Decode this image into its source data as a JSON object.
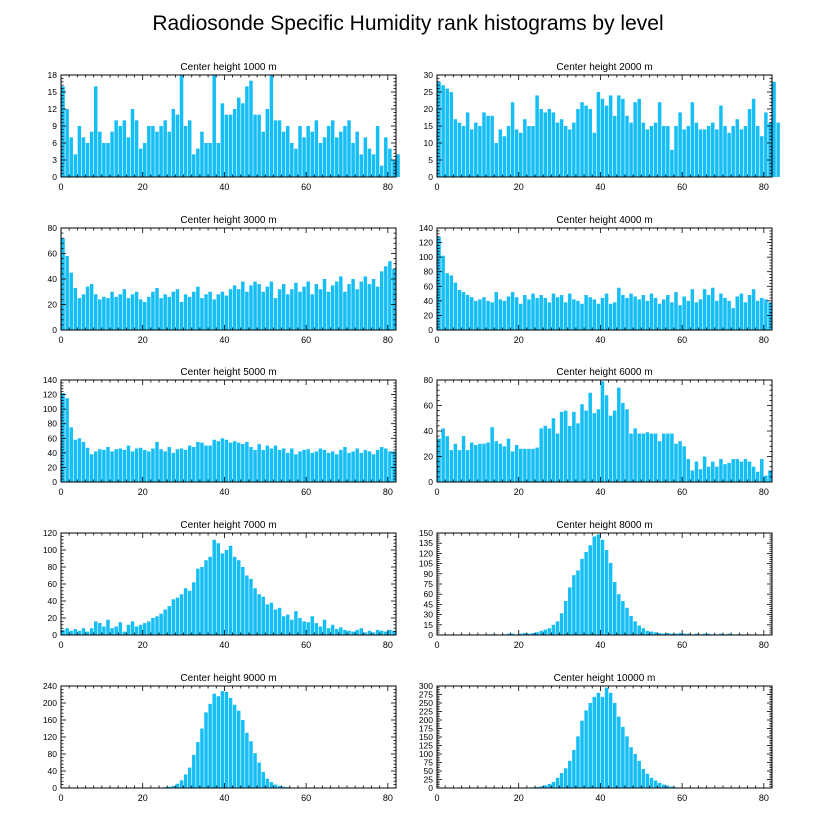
{
  "title": "Radiosonde Specific Humidity rank histograms by level",
  "colors": {
    "bar": "#16BEF6",
    "bar_edge": "#ffffff",
    "axis": "#000000"
  },
  "chart_data": [
    {
      "type": "bar",
      "title": "Center height 1000 m",
      "xlim": [
        0,
        82
      ],
      "ylim": [
        0,
        18
      ],
      "xticks": [
        0,
        20,
        40,
        60,
        80
      ],
      "yticks": [
        0,
        3,
        6,
        9,
        12,
        15,
        18
      ],
      "values": [
        16,
        12,
        7,
        4,
        9,
        7,
        6,
        8,
        16,
        8,
        6,
        6,
        8,
        10,
        9,
        10,
        7,
        12,
        10,
        5,
        6,
        9,
        9,
        8,
        9,
        10,
        8,
        12,
        11,
        18,
        9,
        10,
        4,
        5,
        8,
        6,
        6,
        18,
        6,
        13,
        11,
        11,
        12,
        14,
        13,
        16,
        17,
        11,
        11,
        8,
        12,
        18,
        10,
        10,
        8,
        9,
        6,
        5,
        9,
        7,
        9,
        8,
        10,
        6,
        7,
        9,
        10,
        7,
        8,
        9,
        10,
        6,
        8,
        4,
        7,
        5,
        4,
        9,
        2,
        7,
        5,
        3,
        4
      ]
    },
    {
      "type": "bar",
      "title": "Center height 2000 m",
      "xlim": [
        0,
        82
      ],
      "ylim": [
        0,
        30
      ],
      "xticks": [
        0,
        20,
        40,
        60,
        80
      ],
      "yticks": [
        0,
        5,
        10,
        15,
        20,
        25,
        30
      ],
      "values": [
        28,
        27,
        26,
        25,
        17,
        16,
        15,
        19,
        14,
        16,
        15,
        19,
        18,
        18,
        10,
        14,
        12,
        15,
        22,
        14,
        13,
        17,
        15,
        15,
        24,
        20,
        19,
        20,
        19,
        16,
        17,
        15,
        14,
        16,
        20,
        22,
        21,
        20,
        13,
        25,
        23,
        21,
        24,
        18,
        24,
        23,
        18,
        16,
        22,
        23,
        16,
        14,
        15,
        16,
        22,
        15,
        15,
        8,
        15,
        19,
        14,
        15,
        22,
        16,
        14,
        14,
        15,
        16,
        14,
        21,
        15,
        13,
        15,
        17,
        14,
        15,
        20,
        23,
        15,
        12,
        19,
        16,
        28,
        16
      ]
    },
    {
      "type": "bar",
      "title": "Center height 3000 m",
      "xlim": [
        0,
        82
      ],
      "ylim": [
        0,
        80
      ],
      "xticks": [
        0,
        20,
        40,
        60,
        80
      ],
      "yticks": [
        0,
        20,
        40,
        60,
        80
      ],
      "values": [
        72,
        58,
        45,
        33,
        25,
        28,
        34,
        36,
        28,
        24,
        26,
        25,
        30,
        26,
        28,
        32,
        25,
        28,
        30,
        24,
        22,
        26,
        30,
        33,
        25,
        28,
        26,
        30,
        32,
        22,
        28,
        26,
        30,
        34,
        25,
        28,
        30,
        24,
        28,
        30,
        27,
        32,
        35,
        32,
        38,
        30,
        35,
        38,
        36,
        30,
        34,
        38,
        25,
        32,
        36,
        28,
        32,
        37,
        30,
        34,
        38,
        28,
        36,
        32,
        40,
        30,
        35,
        38,
        42,
        30,
        36,
        40,
        32,
        38,
        42,
        36,
        40,
        34,
        46,
        50,
        54,
        48
      ]
    },
    {
      "type": "bar",
      "title": "Center height 4000 m",
      "xlim": [
        0,
        82
      ],
      "ylim": [
        0,
        140
      ],
      "xticks": [
        0,
        20,
        40,
        60,
        80
      ],
      "yticks": [
        0,
        20,
        40,
        60,
        80,
        100,
        120,
        140
      ],
      "values": [
        128,
        102,
        78,
        75,
        65,
        55,
        52,
        48,
        45,
        40,
        42,
        45,
        40,
        38,
        52,
        42,
        40,
        46,
        52,
        45,
        36,
        48,
        42,
        50,
        44,
        48,
        44,
        38,
        50,
        45,
        48,
        38,
        50,
        42,
        40,
        36,
        48,
        45,
        42,
        36,
        44,
        50,
        36,
        38,
        58,
        48,
        44,
        50,
        46,
        42,
        48,
        40,
        50,
        44,
        36,
        42,
        48,
        38,
        52,
        34,
        46,
        40,
        56,
        38,
        42,
        56,
        48,
        58,
        40,
        50,
        44,
        40,
        30,
        46,
        50,
        38,
        48,
        56,
        40,
        44,
        42,
        38
      ]
    },
    {
      "type": "bar",
      "title": "Center height 5000 m",
      "xlim": [
        0,
        82
      ],
      "ylim": [
        0,
        140
      ],
      "xticks": [
        0,
        20,
        40,
        60,
        80
      ],
      "yticks": [
        0,
        20,
        40,
        60,
        80,
        100,
        120,
        140
      ],
      "values": [
        122,
        115,
        75,
        58,
        60,
        55,
        47,
        38,
        42,
        45,
        44,
        48,
        42,
        45,
        46,
        44,
        50,
        42,
        46,
        47,
        44,
        42,
        46,
        55,
        45,
        42,
        48,
        40,
        45,
        46,
        44,
        50,
        48,
        55,
        54,
        50,
        50,
        58,
        56,
        60,
        58,
        54,
        56,
        54,
        52,
        55,
        48,
        44,
        52,
        44,
        50,
        46,
        50,
        44,
        46,
        40,
        46,
        38,
        42,
        44,
        45,
        40,
        42,
        46,
        44,
        40,
        42,
        38,
        44,
        48,
        40,
        42,
        46,
        40,
        44,
        42,
        38,
        44,
        48,
        46,
        42,
        42
      ]
    },
    {
      "type": "bar",
      "title": "Center height 6000 m",
      "xlim": [
        0,
        82
      ],
      "ylim": [
        0,
        80
      ],
      "xticks": [
        0,
        20,
        40,
        60,
        80
      ],
      "yticks": [
        0,
        20,
        40,
        60,
        80
      ],
      "values": [
        34,
        42,
        36,
        25,
        30,
        25,
        36,
        25,
        31,
        29,
        30,
        30,
        31,
        43,
        32,
        30,
        28,
        34,
        24,
        29,
        26,
        26,
        26,
        26,
        27,
        42,
        44,
        42,
        50,
        38,
        55,
        56,
        44,
        55,
        46,
        61,
        56,
        70,
        54,
        57,
        79,
        68,
        52,
        56,
        74,
        62,
        57,
        38,
        42,
        38,
        38,
        39,
        38,
        38,
        32,
        38,
        38,
        38,
        30,
        32,
        28,
        18,
        9,
        16,
        10,
        20,
        12,
        16,
        12,
        18,
        14,
        15,
        18,
        18,
        16,
        18,
        16,
        12,
        8,
        18,
        5,
        9
      ]
    },
    {
      "type": "bar",
      "title": "Center height 7000 m",
      "xlim": [
        0,
        82
      ],
      "ylim": [
        0,
        120
      ],
      "xticks": [
        0,
        20,
        40,
        60,
        80
      ],
      "yticks": [
        0,
        20,
        40,
        60,
        80,
        100,
        120
      ],
      "values": [
        6,
        8,
        5,
        7,
        5,
        8,
        4,
        8,
        16,
        14,
        10,
        18,
        8,
        10,
        15,
        4,
        12,
        16,
        10,
        12,
        14,
        16,
        20,
        22,
        25,
        30,
        34,
        42,
        44,
        48,
        55,
        52,
        62,
        78,
        80,
        88,
        92,
        112,
        108,
        96,
        100,
        105,
        92,
        88,
        80,
        70,
        66,
        55,
        48,
        45,
        36,
        38,
        30,
        32,
        22,
        24,
        18,
        28,
        20,
        16,
        15,
        22,
        14,
        10,
        18,
        8,
        12,
        7,
        9,
        6,
        5,
        4,
        6,
        8,
        3,
        5,
        3,
        6,
        5,
        4,
        6,
        5
      ]
    },
    {
      "type": "bar",
      "title": "Center height 8000 m",
      "xlim": [
        0,
        82
      ],
      "ylim": [
        0,
        150
      ],
      "xticks": [
        0,
        20,
        40,
        60,
        80
      ],
      "yticks": [
        0,
        15,
        30,
        45,
        60,
        75,
        90,
        105,
        120,
        135,
        150
      ],
      "values": [
        0,
        0,
        0,
        0,
        0,
        0,
        0,
        0,
        0,
        0,
        0,
        0,
        1,
        1,
        1,
        0,
        1,
        2,
        2,
        1,
        2,
        3,
        2,
        3,
        4,
        6,
        8,
        10,
        15,
        20,
        32,
        50,
        70,
        88,
        95,
        112,
        122,
        132,
        145,
        148,
        140,
        125,
        106,
        78,
        60,
        50,
        40,
        28,
        20,
        14,
        10,
        6,
        5,
        4,
        3,
        2,
        3,
        2,
        2,
        3,
        2,
        2,
        1,
        2,
        1,
        2,
        2,
        1,
        1,
        2,
        1,
        2,
        1,
        1,
        1,
        0,
        1,
        0,
        0,
        0,
        0,
        0
      ]
    },
    {
      "type": "bar",
      "title": "Center height 9000 m",
      "xlim": [
        0,
        82
      ],
      "ylim": [
        0,
        240
      ],
      "xticks": [
        0,
        20,
        40,
        60,
        80
      ],
      "yticks": [
        0,
        40,
        80,
        120,
        160,
        200,
        240
      ],
      "values": [
        0,
        0,
        0,
        0,
        0,
        0,
        0,
        0,
        0,
        0,
        0,
        0,
        0,
        0,
        0,
        0,
        0,
        0,
        0,
        0,
        0,
        0,
        0,
        1,
        1,
        2,
        3,
        5,
        10,
        18,
        32,
        48,
        78,
        108,
        140,
        178,
        198,
        222,
        216,
        228,
        226,
        212,
        196,
        182,
        160,
        130,
        110,
        82,
        60,
        38,
        22,
        14,
        8,
        5,
        3,
        2,
        1,
        1,
        0,
        0,
        0,
        0,
        0,
        0,
        0,
        0,
        0,
        0,
        0,
        0,
        0,
        0,
        0,
        0,
        0,
        0,
        0,
        0,
        0,
        0,
        0,
        0
      ]
    },
    {
      "type": "bar",
      "title": "Center height 10000 m",
      "xlim": [
        0,
        82
      ],
      "ylim": [
        0,
        300
      ],
      "xticks": [
        0,
        20,
        40,
        60,
        80
      ],
      "yticks": [
        0,
        25,
        50,
        75,
        100,
        125,
        150,
        175,
        200,
        225,
        250,
        275,
        300
      ],
      "values": [
        0,
        0,
        0,
        0,
        0,
        0,
        0,
        0,
        0,
        0,
        0,
        0,
        0,
        0,
        0,
        0,
        0,
        0,
        0,
        0,
        0,
        0,
        1,
        2,
        3,
        5,
        8,
        12,
        18,
        30,
        44,
        58,
        80,
        112,
        152,
        198,
        228,
        250,
        268,
        280,
        268,
        295,
        280,
        250,
        210,
        180,
        152,
        120,
        100,
        80,
        56,
        42,
        30,
        22,
        15,
        10,
        7,
        4,
        2,
        1,
        1,
        0,
        0,
        0,
        0,
        0,
        0,
        0,
        0,
        0,
        0,
        0,
        0,
        0,
        0,
        0,
        0,
        0,
        0,
        0,
        0,
        0
      ]
    }
  ]
}
